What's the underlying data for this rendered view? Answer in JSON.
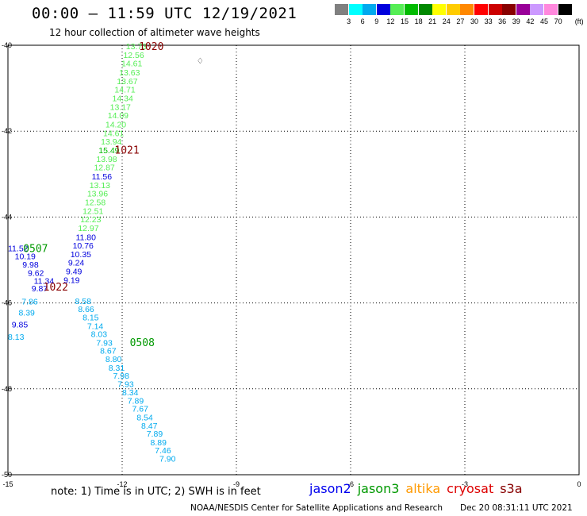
{
  "header": {
    "title": "00:00 – 11:59 UTC 12/19/2021",
    "subtitle": "12 hour collection of altimeter wave heights"
  },
  "colorbar": {
    "unit": "(ft)",
    "colors": [
      "#808080",
      "#00ffff",
      "#00aaee",
      "#0000dd",
      "#55ee55",
      "#00bb00",
      "#008800",
      "#ffff00",
      "#ffcc00",
      "#ff8800",
      "#ff0000",
      "#cc0000",
      "#880000",
      "#990099",
      "#cc99ff",
      "#ff88dd",
      "#000000"
    ],
    "ticks": [
      "3",
      "6",
      "9",
      "12",
      "15",
      "18",
      "21",
      "24",
      "27",
      "30",
      "33",
      "36",
      "39",
      "42",
      "45",
      "70"
    ]
  },
  "note": "note:  1) Time is in UTC;  2) SWH is in feet",
  "legend": [
    {
      "label": "jason2",
      "color": "#0000ee"
    },
    {
      "label": "jason3",
      "color": "#009900"
    },
    {
      "label": "altika",
      "color": "#ff9900"
    },
    {
      "label": "cryosat",
      "color": "#dd0000"
    },
    {
      "label": "s3a",
      "color": "#880000"
    }
  ],
  "credit": "NOAA/NESDIS Center for Satellite Applications and Research",
  "generated": "Dec 20 08:31:11 UTC 2021",
  "chart_data": {
    "type": "scatter",
    "xlim": [
      -15,
      0
    ],
    "ylim": [
      -50,
      -40
    ],
    "xticks": [
      -15,
      -12,
      -9,
      -6,
      -3,
      0
    ],
    "yticks": [
      -40,
      -42,
      -44,
      -46,
      -48,
      -50
    ],
    "x_tick_labels": [
      "-15",
      "-12",
      "-9",
      "-6",
      "-3",
      "0"
    ],
    "y_tick_labels": [
      "-40",
      "-42",
      "-44",
      "-46",
      "-48",
      "-50"
    ],
    "grid": true,
    "points": [
      {
        "x": -11.9,
        "y": -40.02,
        "label": "13.73",
        "color": "#55ee55"
      },
      {
        "x": -11.97,
        "y": -40.22,
        "label": "12.56",
        "color": "#55ee55"
      },
      {
        "x": -12.02,
        "y": -40.42,
        "label": "14.61",
        "color": "#55ee55"
      },
      {
        "x": -12.08,
        "y": -40.63,
        "label": "13.63",
        "color": "#55ee55"
      },
      {
        "x": -12.14,
        "y": -40.83,
        "label": "13.67",
        "color": "#55ee55"
      },
      {
        "x": -12.2,
        "y": -41.03,
        "label": "14.71",
        "color": "#55ee55"
      },
      {
        "x": -12.26,
        "y": -41.23,
        "label": "14.34",
        "color": "#55ee55"
      },
      {
        "x": -12.32,
        "y": -41.43,
        "label": "13.17",
        "color": "#55ee55"
      },
      {
        "x": -12.38,
        "y": -41.63,
        "label": "14.09",
        "color": "#55ee55"
      },
      {
        "x": -12.44,
        "y": -41.84,
        "label": "14.20",
        "color": "#55ee55"
      },
      {
        "x": -12.5,
        "y": -42.04,
        "label": "14.61",
        "color": "#55ee55"
      },
      {
        "x": -12.56,
        "y": -42.24,
        "label": "13.94",
        "color": "#55ee55"
      },
      {
        "x": -12.62,
        "y": -42.44,
        "label": "15.49",
        "color": "#00bb00"
      },
      {
        "x": -12.68,
        "y": -42.64,
        "label": "13.98",
        "color": "#55ee55"
      },
      {
        "x": -12.74,
        "y": -42.84,
        "label": "12.87",
        "color": "#55ee55"
      },
      {
        "x": -12.8,
        "y": -43.05,
        "label": "11.56",
        "color": "#0000dd"
      },
      {
        "x": -12.86,
        "y": -43.25,
        "label": "13.13",
        "color": "#55ee55"
      },
      {
        "x": -12.92,
        "y": -43.45,
        "label": "13.96",
        "color": "#55ee55"
      },
      {
        "x": -12.98,
        "y": -43.65,
        "label": "12.58",
        "color": "#55ee55"
      },
      {
        "x": -13.04,
        "y": -43.85,
        "label": "12.51",
        "color": "#55ee55"
      },
      {
        "x": -13.1,
        "y": -44.05,
        "label": "12.23",
        "color": "#55ee55"
      },
      {
        "x": -13.16,
        "y": -44.25,
        "label": "12.97",
        "color": "#55ee55"
      },
      {
        "x": -13.22,
        "y": -44.46,
        "label": "11.80",
        "color": "#0000dd"
      },
      {
        "x": -13.3,
        "y": -44.66,
        "label": "10.76",
        "color": "#0000dd"
      },
      {
        "x": -13.36,
        "y": -44.86,
        "label": "10.35",
        "color": "#0000dd"
      },
      {
        "x": -13.42,
        "y": -45.06,
        "label": "9.24",
        "color": "#0000dd"
      },
      {
        "x": -13.48,
        "y": -45.26,
        "label": "9.49",
        "color": "#0000dd"
      },
      {
        "x": -13.54,
        "y": -45.46,
        "label": "9.19",
        "color": "#0000dd"
      },
      {
        "x": -15.0,
        "y": -44.72,
        "label": "11.52",
        "color": "#0000dd"
      },
      {
        "x": -14.82,
        "y": -44.91,
        "label": "10.19",
        "color": "#0000dd"
      },
      {
        "x": -14.62,
        "y": -45.1,
        "label": "9.98",
        "color": "#0000dd"
      },
      {
        "x": -14.48,
        "y": -45.3,
        "label": "9.62",
        "color": "#0000dd"
      },
      {
        "x": -14.32,
        "y": -45.48,
        "label": "11.34",
        "color": "#0000dd"
      },
      {
        "x": -14.38,
        "y": -45.66,
        "label": "9.87",
        "color": "#0000dd"
      },
      {
        "x": -14.64,
        "y": -45.96,
        "label": "7.86",
        "color": "#00aaee"
      },
      {
        "x": -14.72,
        "y": -46.22,
        "label": "8.39",
        "color": "#00aaee"
      },
      {
        "x": -14.9,
        "y": -46.5,
        "label": "9.85",
        "color": "#0000dd"
      },
      {
        "x": -15.0,
        "y": -46.78,
        "label": "8.13",
        "color": "#00aaee"
      },
      {
        "x": -13.24,
        "y": -45.95,
        "label": "8.58",
        "color": "#00aaee"
      },
      {
        "x": -13.16,
        "y": -46.14,
        "label": "8.66",
        "color": "#00aaee"
      },
      {
        "x": -13.04,
        "y": -46.33,
        "label": "8.15",
        "color": "#00aaee"
      },
      {
        "x": -12.92,
        "y": -46.53,
        "label": "7.14",
        "color": "#00aaee"
      },
      {
        "x": -12.82,
        "y": -46.72,
        "label": "8.03",
        "color": "#00aaee"
      },
      {
        "x": -12.68,
        "y": -46.92,
        "label": "7.93",
        "color": "#00aaee"
      },
      {
        "x": -12.58,
        "y": -47.11,
        "label": "8.67",
        "color": "#00aaee"
      },
      {
        "x": -12.44,
        "y": -47.3,
        "label": "8.80",
        "color": "#00aaee"
      },
      {
        "x": -12.36,
        "y": -47.5,
        "label": "8.31",
        "color": "#00aaee"
      },
      {
        "x": -12.24,
        "y": -47.69,
        "label": "7.98",
        "color": "#00aaee"
      },
      {
        "x": -12.12,
        "y": -47.88,
        "label": "7.93",
        "color": "#00aaee"
      },
      {
        "x": -12.0,
        "y": -48.08,
        "label": "8.34",
        "color": "#00aaee"
      },
      {
        "x": -11.86,
        "y": -48.27,
        "label": "7.89",
        "color": "#00aaee"
      },
      {
        "x": -11.74,
        "y": -48.46,
        "label": "7.67",
        "color": "#00aaee"
      },
      {
        "x": -11.62,
        "y": -48.66,
        "label": "8.54",
        "color": "#00aaee"
      },
      {
        "x": -11.5,
        "y": -48.85,
        "label": "8.47",
        "color": "#00aaee"
      },
      {
        "x": -11.36,
        "y": -49.04,
        "label": "7.89",
        "color": "#00aaee"
      },
      {
        "x": -11.26,
        "y": -49.24,
        "label": "8.89",
        "color": "#00aaee"
      },
      {
        "x": -11.14,
        "y": -49.43,
        "label": "7.46",
        "color": "#00aaee"
      },
      {
        "x": -11.02,
        "y": -49.62,
        "label": "7.90",
        "color": "#00aaee"
      }
    ],
    "time_labels": [
      {
        "x": -11.56,
        "y": -40.02,
        "label": "1020",
        "color": "#880000"
      },
      {
        "x": -12.2,
        "y": -42.43,
        "label": "1021",
        "color": "#880000"
      },
      {
        "x": -14.6,
        "y": -44.72,
        "label": "0507",
        "color": "#009900"
      },
      {
        "x": -14.07,
        "y": -45.62,
        "label": "1022",
        "color": "#880000"
      },
      {
        "x": -11.8,
        "y": -46.91,
        "label": "0508",
        "color": "#009900"
      }
    ],
    "markers": [
      {
        "x": -9.95,
        "y": -40.35,
        "label": "♢",
        "color": "#000000"
      }
    ]
  }
}
